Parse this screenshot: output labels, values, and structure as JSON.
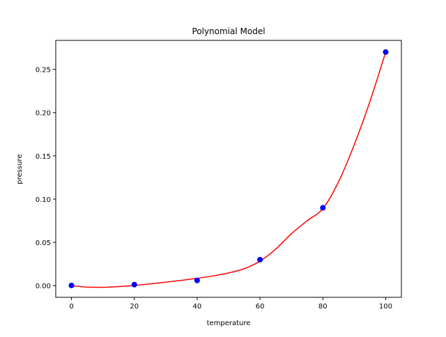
{
  "chart_data": {
    "type": "scatter",
    "title": "Polynomial Model",
    "xlabel": "temperature",
    "ylabel": "pressure",
    "xlim": [
      -5,
      105
    ],
    "ylim": [
      -0.0135,
      0.2835
    ],
    "xticks": [
      0,
      20,
      40,
      60,
      80,
      100
    ],
    "yticks": [
      0.0,
      0.05,
      0.1,
      0.15,
      0.2,
      0.25
    ],
    "xtick_labels": [
      "0",
      "20",
      "40",
      "60",
      "80",
      "100"
    ],
    "ytick_labels": [
      "0.00",
      "0.05",
      "0.10",
      "0.15",
      "0.20",
      "0.25"
    ],
    "grid": false,
    "series": [
      {
        "kind": "scatter",
        "color": "#0000ff",
        "x": [
          0,
          20,
          40,
          60,
          80,
          100
        ],
        "y": [
          0.0002,
          0.0012,
          0.006,
          0.03,
          0.09,
          0.27
        ]
      },
      {
        "kind": "line",
        "color": "#ff0000",
        "x": [
          0,
          5,
          10,
          15,
          20,
          25,
          30,
          35,
          40,
          45,
          50,
          55,
          60,
          65,
          70,
          75,
          80,
          85,
          90,
          95,
          100
        ],
        "y": [
          0.0,
          -0.0017,
          -0.0019,
          -0.0011,
          0.0002,
          0.002,
          0.004,
          0.0061,
          0.0085,
          0.0112,
          0.0147,
          0.0196,
          0.0283,
          0.0422,
          0.06,
          0.075,
          0.089,
          0.12,
          0.163,
          0.213,
          0.27
        ]
      }
    ]
  }
}
